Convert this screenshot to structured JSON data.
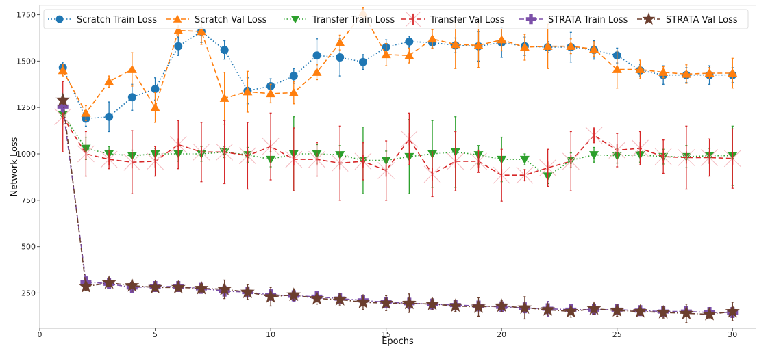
{
  "chart_data": {
    "type": "line",
    "xlabel": "Epochs",
    "ylabel": "Network Loss",
    "xlim": [
      0,
      31
    ],
    "ylim": [
      60,
      1800
    ],
    "xticks": [
      0,
      5,
      10,
      15,
      20,
      25,
      30
    ],
    "yticks": [
      250,
      500,
      750,
      1000,
      1250,
      1500,
      1750
    ],
    "grid": false,
    "legend_position": "top",
    "x": [
      1,
      2,
      3,
      4,
      5,
      6,
      7,
      8,
      9,
      10,
      11,
      12,
      13,
      14,
      15,
      16,
      17,
      18,
      19,
      20,
      21,
      22,
      23,
      24,
      25,
      26,
      27,
      28,
      29,
      30
    ],
    "series": [
      {
        "name": "Scratch Train Loss",
        "color": "#1f77b4",
        "linestyle": "dotted",
        "marker": "circle",
        "values": [
          1465,
          1190,
          1200,
          1305,
          1350,
          1580,
          1660,
          1560,
          1340,
          1365,
          1420,
          1530,
          1520,
          1495,
          1575,
          1605,
          1600,
          1585,
          1580,
          1600,
          1580,
          1575,
          1575,
          1560,
          1530,
          1450,
          1425,
          1425,
          1425,
          1425
        ],
        "errors": [
          30,
          40,
          80,
          70,
          60,
          50,
          60,
          50,
          70,
          40,
          40,
          90,
          100,
          40,
          40,
          30,
          30,
          40,
          80,
          80,
          50,
          30,
          80,
          50,
          40,
          30,
          50,
          40,
          50,
          40
        ]
      },
      {
        "name": "Scratch Val Loss",
        "color": "#ff7f0e",
        "linestyle": "dashed",
        "marker": "triangle-up",
        "values": [
          1450,
          1220,
          1390,
          1455,
          1250,
          1665,
          1660,
          1300,
          1335,
          1325,
          1330,
          1440,
          1600,
          1760,
          1535,
          1530,
          1620,
          1590,
          1585,
          1615,
          1575,
          1580,
          1580,
          1565,
          1455,
          1455,
          1440,
          1430,
          1435,
          1435
        ],
        "errors": [
          30,
          40,
          30,
          90,
          80,
          30,
          70,
          140,
          110,
          50,
          60,
          40,
          40,
          30,
          60,
          40,
          50,
          130,
          120,
          60,
          70,
          120,
          40,
          40,
          100,
          50,
          30,
          50,
          30,
          80
        ]
      },
      {
        "name": "Transfer Train Loss",
        "color": "#2ca02c",
        "linestyle": "dotted",
        "marker": "triangle-down",
        "values": [
          1210,
          1030,
          1000,
          990,
          1000,
          1000,
          1000,
          1010,
          995,
          970,
          1000,
          1000,
          995,
          965,
          965,
          985,
          1000,
          1010,
          995,
          970,
          970,
          880,
          965,
          995,
          990,
          995,
          985,
          985,
          990,
          990
        ],
        "errors": [
          50,
          60,
          40,
          30,
          30,
          40,
          40,
          30,
          40,
          40,
          200,
          50,
          50,
          180,
          50,
          200,
          180,
          190,
          50,
          120,
          30,
          40,
          40,
          40,
          40,
          40,
          40,
          60,
          40,
          160
        ]
      },
      {
        "name": "Transfer Val Loss",
        "color": "#d62728",
        "linestyle": "dashed",
        "marker": "vline",
        "values": [
          1200,
          1000,
          970,
          955,
          960,
          1050,
          1010,
          1010,
          990,
          1040,
          970,
          970,
          950,
          960,
          910,
          1080,
          890,
          960,
          960,
          885,
          885,
          925,
          960,
          1100,
          1020,
          1030,
          985,
          980,
          980,
          975
        ],
        "errors": [
          190,
          120,
          50,
          170,
          80,
          130,
          160,
          170,
          180,
          180,
          170,
          90,
          200,
          100,
          160,
          140,
          120,
          160,
          60,
          140,
          30,
          100,
          160,
          40,
          90,
          90,
          90,
          170,
          100,
          160
        ]
      },
      {
        "name": "STRATA Train Loss",
        "color": "#7b4fa8",
        "linestyle": "dashdot",
        "marker": "plus",
        "values": [
          1255,
          310,
          300,
          280,
          285,
          285,
          275,
          260,
          255,
          240,
          235,
          230,
          220,
          210,
          200,
          195,
          190,
          185,
          180,
          175,
          170,
          165,
          160,
          160,
          160,
          155,
          150,
          150,
          145,
          145
        ],
        "errors": [
          30,
          20,
          20,
          25,
          20,
          20,
          20,
          20,
          25,
          30,
          30,
          20,
          20,
          20,
          25,
          30,
          25,
          25,
          25,
          25,
          25,
          40,
          25,
          25,
          20,
          20,
          25,
          25,
          20,
          20
        ]
      },
      {
        "name": "STRATA Val Loss",
        "color": "#6b3e2e",
        "linestyle": "dashdot",
        "marker": "star",
        "values": [
          1290,
          285,
          305,
          290,
          280,
          280,
          275,
          270,
          255,
          230,
          240,
          220,
          215,
          200,
          195,
          195,
          190,
          180,
          175,
          180,
          170,
          160,
          150,
          165,
          155,
          150,
          145,
          140,
          135,
          150
        ],
        "errors": [
          20,
          20,
          20,
          30,
          20,
          20,
          20,
          50,
          40,
          50,
          30,
          30,
          30,
          40,
          40,
          50,
          30,
          30,
          50,
          30,
          60,
          30,
          30,
          30,
          30,
          20,
          30,
          50,
          20,
          50
        ]
      }
    ]
  }
}
